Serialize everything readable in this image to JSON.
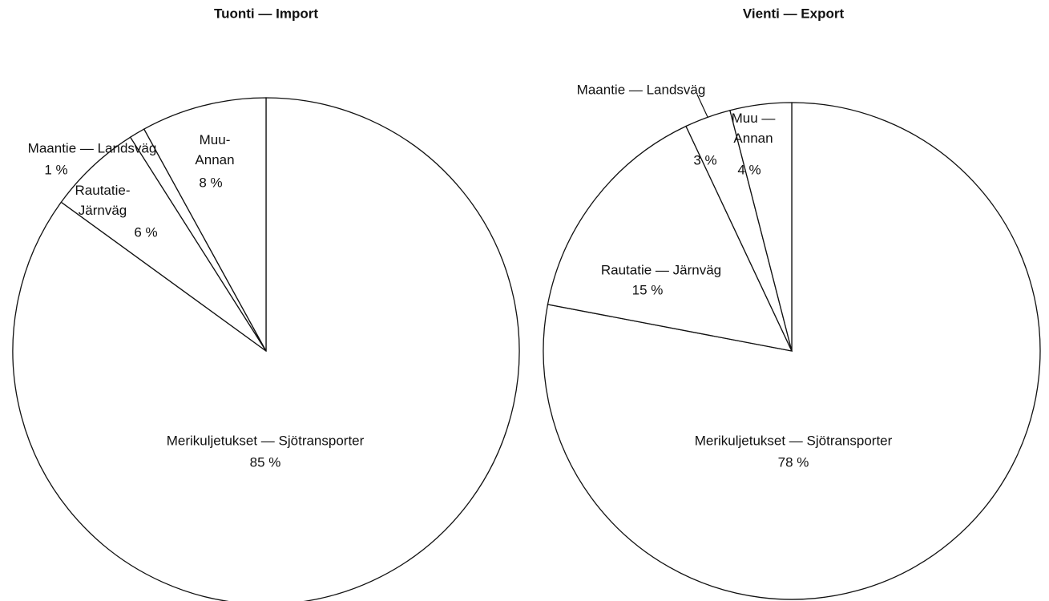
{
  "chart_data": [
    {
      "type": "pie",
      "title": "Tuonti — Import",
      "categories": [
        "Merikuljetukset — Sjötransporter",
        "Rautatie-\nJärnväg",
        "Maantie — Landsväg",
        "Muu-\nAnnan"
      ],
      "values": [
        85,
        6,
        1,
        8
      ],
      "value_labels": [
        "85 %",
        "6 %",
        "1 %",
        "8 %"
      ],
      "color": "#ffffff"
    },
    {
      "type": "pie",
      "title": "Vienti — Export",
      "categories": [
        "Merikuljetukset — Sjötransporter",
        "Rautatie — Järnväg",
        "Maantie — Landsväg",
        "Muu —\nAnnan"
      ],
      "values": [
        78,
        15,
        3,
        4
      ],
      "value_labels": [
        "78 %",
        "15 %",
        "3 %",
        "4 %"
      ],
      "color": "#ffffff"
    }
  ]
}
